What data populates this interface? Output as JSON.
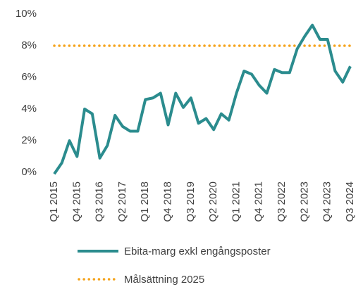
{
  "chart_data": {
    "type": "line",
    "categories": [
      "Q1 2015",
      null,
      null,
      "Q4 2015",
      null,
      null,
      "Q3 2016",
      null,
      null,
      "Q2 2017",
      null,
      null,
      "Q1 2018",
      null,
      null,
      "Q4 2018",
      null,
      null,
      "Q3 2019",
      null,
      null,
      "Q2 2020",
      null,
      null,
      "Q1 2021",
      null,
      null,
      "Q4 2021",
      null,
      null,
      "Q3 2022",
      null,
      null,
      "Q2 2023",
      null,
      null,
      "Q4 2023",
      null,
      null,
      "Q3 2024"
    ],
    "series": [
      {
        "name": "Ebita-marg exkl engångsposter",
        "color": "#2b8c8e",
        "style": "solid",
        "values": [
          -0.1,
          0.6,
          2.0,
          1.0,
          4.0,
          3.7,
          0.9,
          1.7,
          3.6,
          2.9,
          2.6,
          2.6,
          4.6,
          4.7,
          5.0,
          3.0,
          5.0,
          4.1,
          4.7,
          3.1,
          3.4,
          2.7,
          3.7,
          3.3,
          5.0,
          6.4,
          6.2,
          5.5,
          5.0,
          6.5,
          6.3,
          6.3,
          7.8,
          8.6,
          9.3,
          8.4,
          8.4,
          6.4,
          5.7,
          6.7
        ]
      },
      {
        "name": "Målsättning 2025",
        "color": "#f5a31a",
        "style": "dotted",
        "values": [
          8,
          8,
          8,
          8,
          8,
          8,
          8,
          8,
          8,
          8,
          8,
          8,
          8,
          8,
          8,
          8,
          8,
          8,
          8,
          8,
          8,
          8,
          8,
          8,
          8,
          8,
          8,
          8,
          8,
          8,
          8,
          8,
          8,
          8,
          8,
          8,
          8,
          8,
          8,
          8
        ]
      }
    ],
    "ylim": [
      0,
      10
    ],
    "yticks": [
      {
        "value": 0,
        "label": "0%"
      },
      {
        "value": 2,
        "label": "2%"
      },
      {
        "value": 4,
        "label": "4%"
      },
      {
        "value": 6,
        "label": "6%"
      },
      {
        "value": 8,
        "label": "8%"
      },
      {
        "value": 10,
        "label": "10%"
      }
    ],
    "grid": false,
    "legend": "bottom"
  }
}
